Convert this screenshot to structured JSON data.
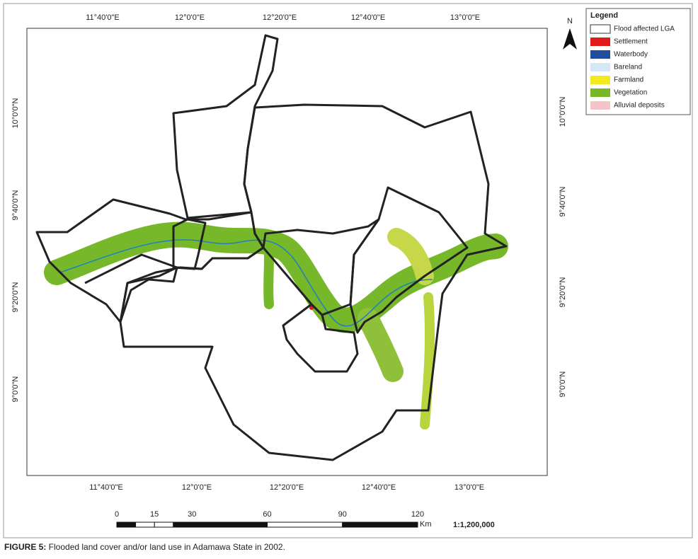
{
  "map": {
    "top_labels": [
      "11°40'0\"E",
      "12°0'0\"E",
      "12°20'0\"E",
      "12°40'0\"E",
      "13°0'0\"E"
    ],
    "bottom_labels": [
      "11°40'0\"E",
      "12°0'0\"E",
      "12°20'0\"E",
      "12°40'0\"E",
      "13°0'0\"E"
    ],
    "left_labels": [
      "10°0'0\"N",
      "9°40'0\"N",
      "9°20'0\"N",
      "9°0'0\"N"
    ],
    "right_labels": [
      "10°0'0\"N",
      "9°40'0\"N",
      "9°20'0\"N",
      "9°0'0\"N"
    ],
    "north": "N",
    "legend": {
      "title": "Legend",
      "items": [
        {
          "label": "Flood affected LGA",
          "color": "#ffffff"
        },
        {
          "label": "Settlement",
          "color": "#e31a1c"
        },
        {
          "label": "Waterbody",
          "color": "#1f4e9c"
        },
        {
          "label": "Bareland",
          "color": "#d3e7f7"
        },
        {
          "label": "Farmland",
          "color": "#f3ea1c"
        },
        {
          "label": "Vegetation",
          "color": "#77b82a"
        },
        {
          "label": "Alluvial deposits",
          "color": "#f4c4cb"
        }
      ]
    },
    "scale": {
      "ticks": [
        0,
        15,
        30,
        60,
        90,
        120
      ],
      "unit": "Km",
      "ratio": "1:1,200,000"
    }
  },
  "caption": {
    "label": "FIGURE 5:",
    "text": " Flooded land cover and/or land use in Adamawa State in 2002."
  }
}
